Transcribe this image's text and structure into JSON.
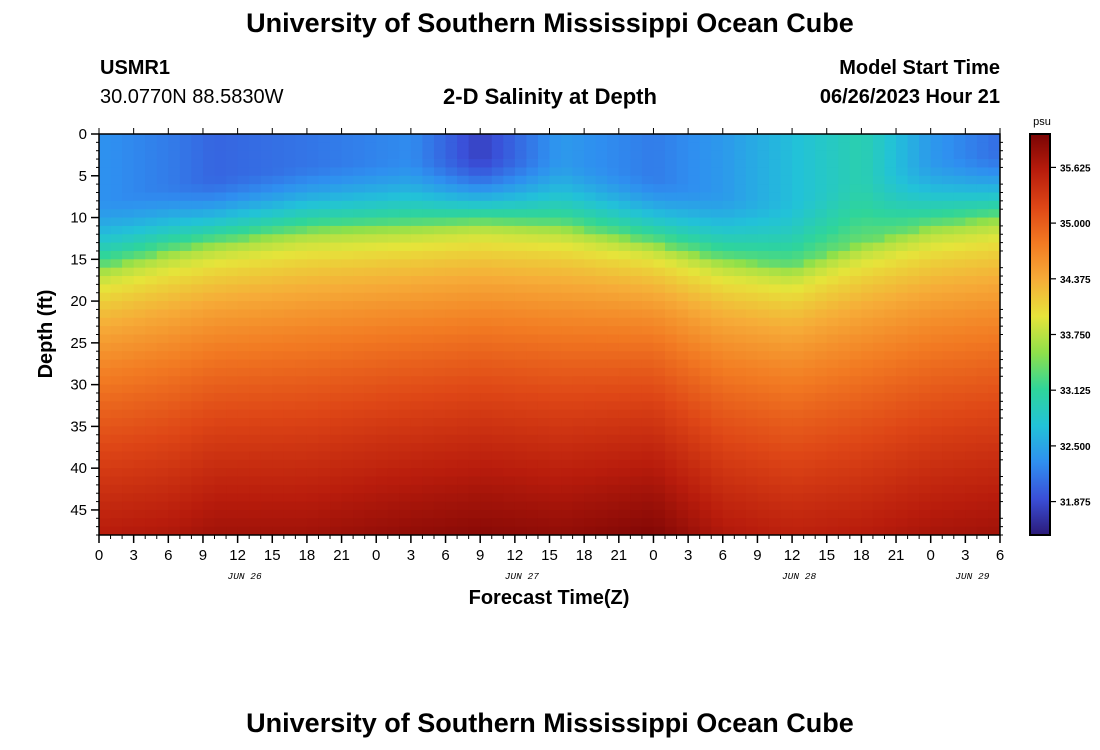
{
  "page": {
    "title": "University of Southern Mississippi Ocean Cube",
    "footer_title": "University of Southern Mississippi Ocean Cube"
  },
  "station": {
    "id": "USMR1",
    "coords": "30.0770N  88.5830W"
  },
  "model": {
    "start_label": "Model Start Time",
    "start_value": "06/26/2023 Hour 21"
  },
  "chart_data": {
    "type": "heatmap",
    "title": "2-D Salinity at Depth",
    "xlabel": "Forecast Time(Z)",
    "ylabel": "Depth (ft)",
    "units": "psu",
    "ylim": [
      0,
      48
    ],
    "yticks": [
      "0",
      "5",
      "10",
      "15",
      "20",
      "25",
      "30",
      "35",
      "40",
      "45"
    ],
    "ytick_values": [
      0,
      5,
      10,
      15,
      20,
      25,
      30,
      35,
      40,
      45
    ],
    "xrange_hours": [
      0,
      78
    ],
    "xticks": [
      "0",
      "3",
      "6",
      "9",
      "12",
      "15",
      "18",
      "21",
      "0",
      "3",
      "6",
      "9",
      "12",
      "15",
      "18",
      "21",
      "0",
      "3",
      "6",
      "9",
      "12",
      "15",
      "18",
      "21",
      "0",
      "3",
      "6"
    ],
    "day_labels": [
      {
        "label": "JUN 26",
        "hour": 12
      },
      {
        "label": "JUN 27",
        "hour": 36
      },
      {
        "label": "JUN 28",
        "hour": 60
      },
      {
        "label": "JUN 29",
        "hour": 75
      }
    ],
    "colorbar": {
      "min": 31.5,
      "max": 36.0,
      "ticks": [
        "35.625",
        "35.000",
        "34.375",
        "33.750",
        "33.125",
        "32.500",
        "31.875"
      ],
      "tick_values": [
        35.625,
        35.0,
        34.375,
        33.75,
        33.125,
        32.5,
        31.875
      ],
      "colors": [
        "#2b1a78",
        "#3a4fd8",
        "#2f8ff0",
        "#22c2d8",
        "#2fd59a",
        "#8fe04a",
        "#e6e43a",
        "#f6ac38",
        "#f27a22",
        "#de4616",
        "#b81c0c",
        "#7a0404"
      ]
    },
    "profile_hours": [
      0,
      6,
      10,
      18,
      27,
      33,
      40,
      48,
      54,
      60,
      66,
      72,
      78
    ],
    "halocline_depth_ft": [
      16.0,
      14.0,
      13.0,
      11.5,
      11.0,
      10.5,
      11.0,
      13.0,
      15.0,
      16.0,
      13.0,
      11.0,
      10.0
    ],
    "surface_salinity_psu": [
      32.35,
      32.2,
      32.05,
      32.15,
      32.3,
      31.8,
      32.4,
      32.2,
      32.4,
      32.7,
      33.0,
      32.4,
      32.1
    ],
    "deep_salinity_psu": [
      35.6,
      35.65,
      35.75,
      35.75,
      35.85,
      35.9,
      35.85,
      35.95,
      35.65,
      35.55,
      35.6,
      35.7,
      35.75
    ]
  }
}
